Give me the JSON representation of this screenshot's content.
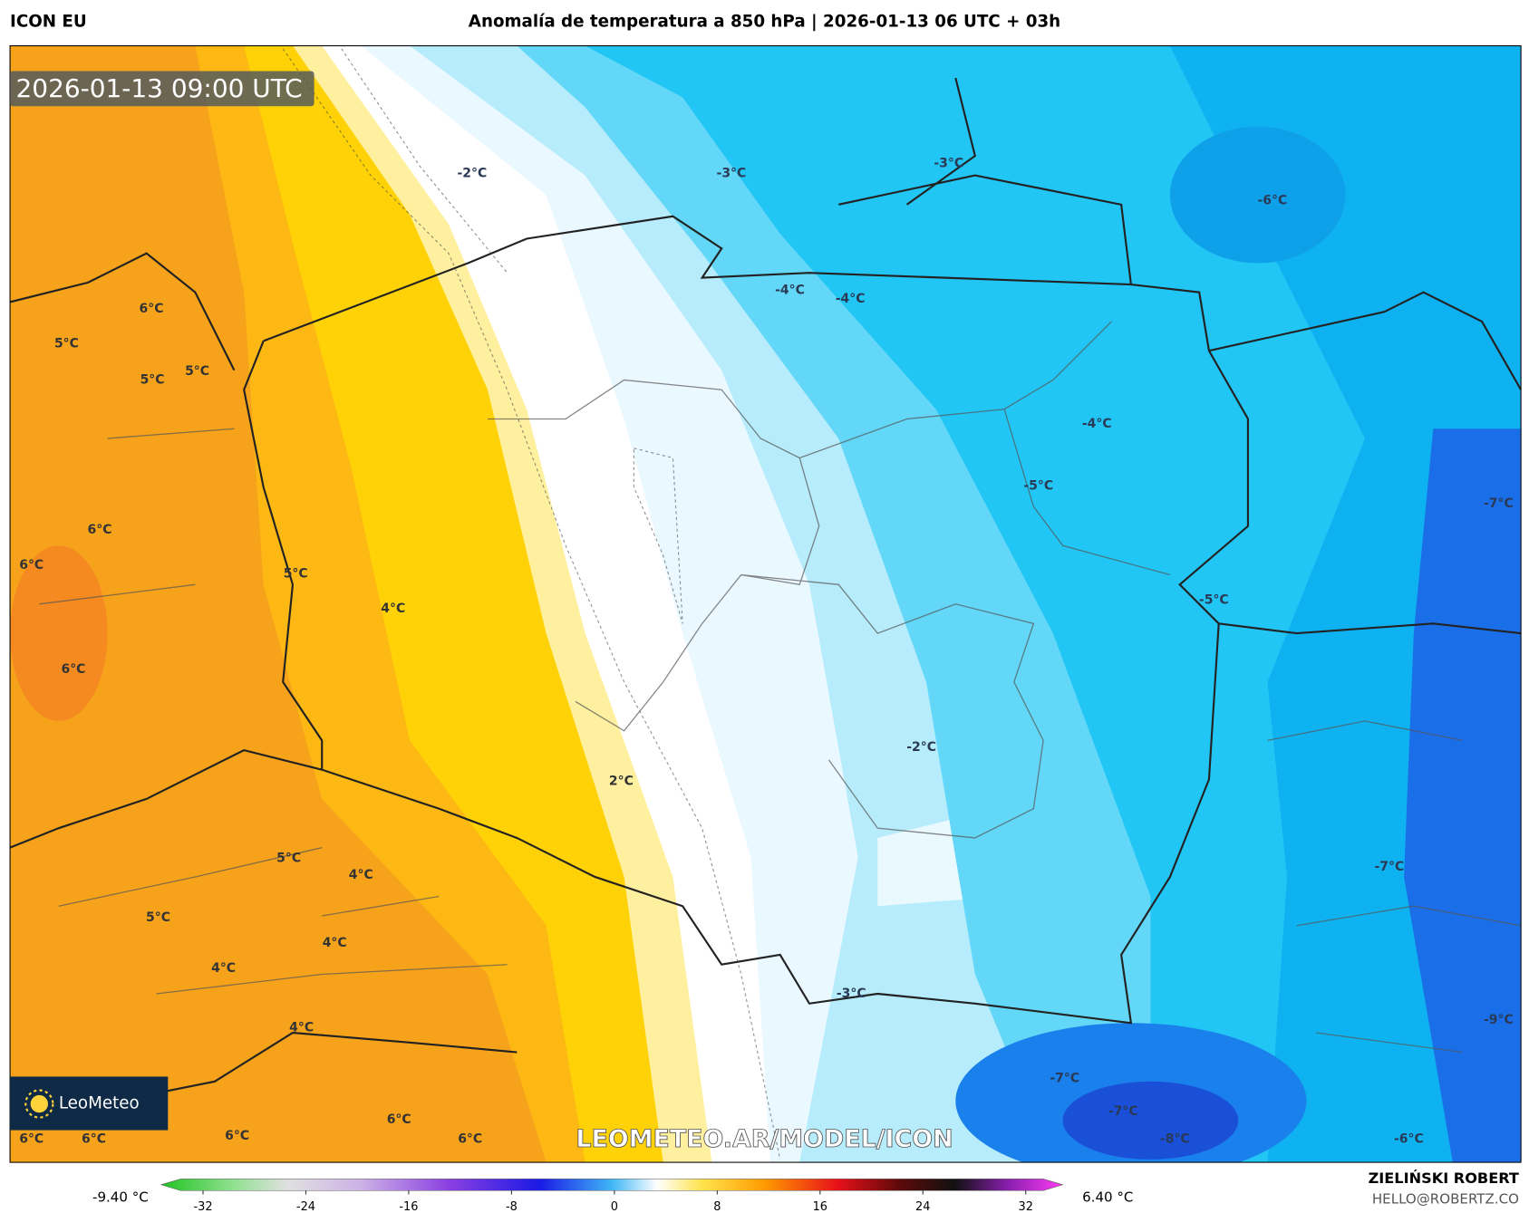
{
  "header": {
    "model": "ICON EU",
    "title": "Anomalía de temperatura a 850 hPa | 2026-01-13 06 UTC + 03h"
  },
  "map": {
    "timestamp": "2026-01-13 09:00 UTC",
    "watermark": "LEOMETEO.AR/MODEL/ICON",
    "logo": "LeoMeteo",
    "contour_labels": [
      "-2°C",
      "-3°C",
      "-3°C",
      "-6°C",
      "-4°C",
      "-4°C",
      "6°C",
      "5°C",
      "5°C",
      "5°C",
      "-4°C",
      "-5°C",
      "-7°C",
      "6°C",
      "6°C",
      "5°C",
      "4°C",
      "-5°C",
      "6°C",
      "-2°C",
      "2°C",
      "5°C",
      "4°C",
      "-7°C",
      "5°C",
      "4°C",
      "4°C",
      "-3°C",
      "4°C",
      "-9°C",
      "-7°C",
      "-7°C",
      "6°C",
      "-8°C",
      "6°C",
      "6°C",
      "6°C",
      "6°C",
      "-6°C"
    ]
  },
  "colorbar": {
    "min_label": "-9.40 °C",
    "max_label": "6.40 °C",
    "ticks": [
      -32,
      -24,
      -16,
      -8,
      0,
      8,
      16,
      24,
      32
    ]
  },
  "footer": {
    "author": "ZIELIŃSKI ROBERT",
    "email": "HELLO@ROBERTZ.CO"
  }
}
